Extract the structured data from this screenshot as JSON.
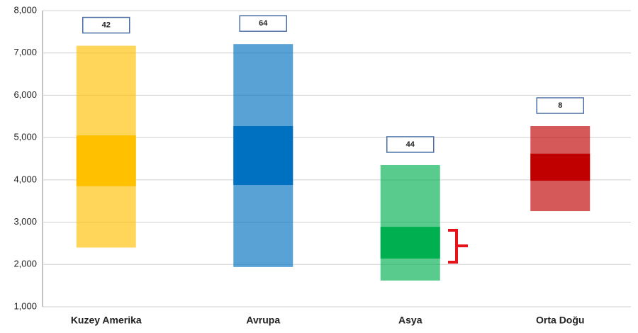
{
  "chart_data": {
    "type": "floating_bar",
    "categories": [
      "Kuzey Amerika",
      "Avrupa",
      "Asya",
      "Orta Doğu"
    ],
    "low": [
      2400,
      1940,
      1620,
      3260
    ],
    "high": [
      7170,
      7210,
      4350,
      5270
    ],
    "inner_low": [
      3850,
      3880,
      2140,
      3980
    ],
    "inner_high": [
      5050,
      5270,
      2890,
      4620
    ],
    "counts": [
      42,
      64,
      44,
      8
    ],
    "colors": [
      "#ffc000",
      "#0070c0",
      "#00b050",
      "#c00000"
    ],
    "ylim": [
      1000,
      8000
    ],
    "yticks": [
      {
        "value": 1000,
        "label": "1,000"
      },
      {
        "value": 2000,
        "label": "2,000"
      },
      {
        "value": 3000,
        "label": "3,000"
      },
      {
        "value": 4000,
        "label": "4,000"
      },
      {
        "value": 5000,
        "label": "5,000"
      },
      {
        "value": 6000,
        "label": "6,000"
      },
      {
        "value": 7000,
        "label": "7,000"
      },
      {
        "value": 8000,
        "label": "8,000"
      }
    ],
    "grid": true
  }
}
